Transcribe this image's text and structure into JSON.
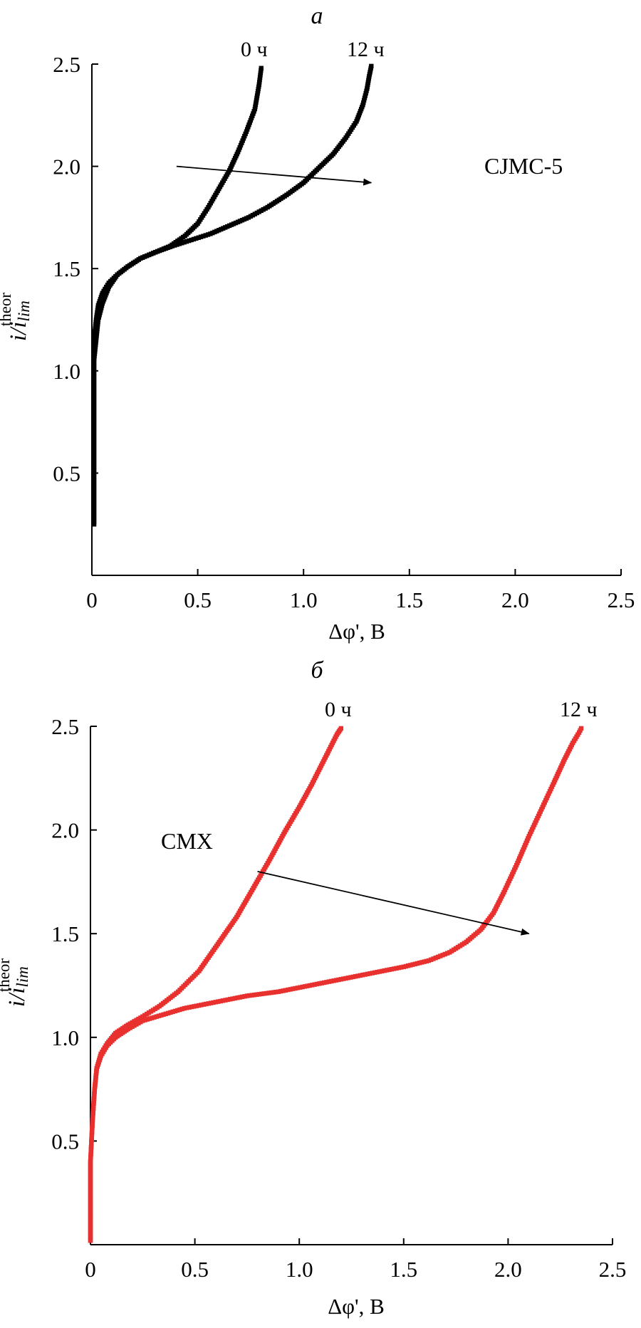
{
  "chart_data": [
    {
      "type": "scatter",
      "panel_label": "а",
      "annotation": "CJMC-5",
      "xlabel": "Δφ', В",
      "ylabel": {
        "main": "i/i",
        "subscript": "lim",
        "superscript": "theor"
      },
      "xlim": [
        0,
        2.5
      ],
      "ylim": [
        0,
        2.5
      ],
      "xticks": [
        0,
        0.5,
        1.0,
        1.5,
        2.0,
        2.5
      ],
      "xtick_labels": [
        "0",
        "0.5",
        "1.0",
        "1.5",
        "2.0",
        "2.5"
      ],
      "yticks": [
        0.5,
        1.0,
        1.5,
        2.0,
        2.5
      ],
      "ytick_labels": [
        "0.5",
        "1.0",
        "1.5",
        "2.0",
        "2.5"
      ],
      "color": "#000000",
      "series": [
        {
          "name": "0 ч",
          "x": [
            0.01,
            0.01,
            0.01,
            0.01,
            0.01,
            0.01,
            0.01,
            0.01,
            0.01,
            0.02,
            0.03,
            0.05,
            0.08,
            0.12,
            0.17,
            0.23,
            0.3,
            0.37,
            0.44,
            0.5,
            0.55,
            0.6,
            0.65,
            0.69,
            0.73,
            0.77,
            0.79,
            0.8
          ],
          "y": [
            0.25,
            0.35,
            0.45,
            0.55,
            0.65,
            0.75,
            0.85,
            0.95,
            1.05,
            1.15,
            1.25,
            1.33,
            1.41,
            1.47,
            1.51,
            1.55,
            1.58,
            1.61,
            1.66,
            1.72,
            1.8,
            1.89,
            1.98,
            2.07,
            2.17,
            2.28,
            2.4,
            2.48
          ]
        },
        {
          "name": "12 ч",
          "x": [
            0.01,
            0.01,
            0.01,
            0.01,
            0.01,
            0.01,
            0.01,
            0.02,
            0.03,
            0.05,
            0.08,
            0.12,
            0.17,
            0.23,
            0.3,
            0.38,
            0.47,
            0.56,
            0.65,
            0.74,
            0.83,
            0.92,
            1.0,
            1.07,
            1.14,
            1.2,
            1.25,
            1.28,
            1.3,
            1.31,
            1.32
          ],
          "y": [
            0.25,
            0.4,
            0.55,
            0.7,
            0.85,
            1.0,
            1.15,
            1.25,
            1.32,
            1.38,
            1.43,
            1.47,
            1.51,
            1.55,
            1.58,
            1.61,
            1.64,
            1.67,
            1.71,
            1.75,
            1.8,
            1.86,
            1.92,
            1.99,
            2.06,
            2.14,
            2.22,
            2.3,
            2.38,
            2.44,
            2.49
          ]
        }
      ],
      "arrow": {
        "from": [
          0.4,
          2.0
        ],
        "to": [
          1.32,
          1.92
        ]
      }
    },
    {
      "type": "scatter",
      "panel_label": "б",
      "annotation": "CMX",
      "xlabel": "Δφ', В",
      "ylabel": {
        "main": "i/i",
        "subscript": "lim",
        "superscript": "theor"
      },
      "xlim": [
        0,
        2.5
      ],
      "ylim": [
        0,
        2.5
      ],
      "xticks": [
        0,
        0.5,
        1.0,
        1.5,
        2.0,
        2.5
      ],
      "xtick_labels": [
        "0",
        "0.5",
        "1.0",
        "1.5",
        "2.0",
        "2.5"
      ],
      "yticks": [
        0.5,
        1.0,
        1.5,
        2.0,
        2.5
      ],
      "ytick_labels": [
        "0.5",
        "1.0",
        "1.5",
        "2.0",
        "2.5"
      ],
      "color": "#e8312f",
      "series": [
        {
          "name": "0 ч",
          "x": [
            0.0,
            0.0,
            0.0,
            0.01,
            0.02,
            0.03,
            0.05,
            0.08,
            0.12,
            0.18,
            0.25,
            0.33,
            0.42,
            0.52,
            0.61,
            0.7,
            0.78,
            0.86,
            0.93,
            1.0,
            1.06,
            1.11,
            1.15,
            1.18,
            1.2
          ],
          "y": [
            0.02,
            0.2,
            0.4,
            0.6,
            0.75,
            0.85,
            0.92,
            0.97,
            1.02,
            1.06,
            1.1,
            1.15,
            1.22,
            1.32,
            1.45,
            1.58,
            1.72,
            1.86,
            1.99,
            2.11,
            2.22,
            2.32,
            2.4,
            2.46,
            2.49
          ]
        },
        {
          "name": "12 ч",
          "x": [
            0.0,
            0.0,
            0.0,
            0.01,
            0.02,
            0.03,
            0.05,
            0.08,
            0.12,
            0.18,
            0.25,
            0.35,
            0.45,
            0.6,
            0.75,
            0.9,
            1.05,
            1.2,
            1.35,
            1.5,
            1.62,
            1.72,
            1.8,
            1.87,
            1.93,
            1.98,
            2.04,
            2.1,
            2.16,
            2.22,
            2.27,
            2.31,
            2.34,
            2.35
          ],
          "y": [
            0.02,
            0.2,
            0.4,
            0.6,
            0.75,
            0.85,
            0.91,
            0.96,
            1.0,
            1.04,
            1.08,
            1.11,
            1.14,
            1.17,
            1.2,
            1.22,
            1.25,
            1.28,
            1.31,
            1.34,
            1.37,
            1.41,
            1.46,
            1.52,
            1.6,
            1.7,
            1.83,
            1.97,
            2.1,
            2.23,
            2.34,
            2.42,
            2.47,
            2.49
          ]
        }
      ],
      "arrow": {
        "from": [
          0.8,
          1.8
        ],
        "to": [
          2.1,
          1.5
        ]
      }
    }
  ]
}
